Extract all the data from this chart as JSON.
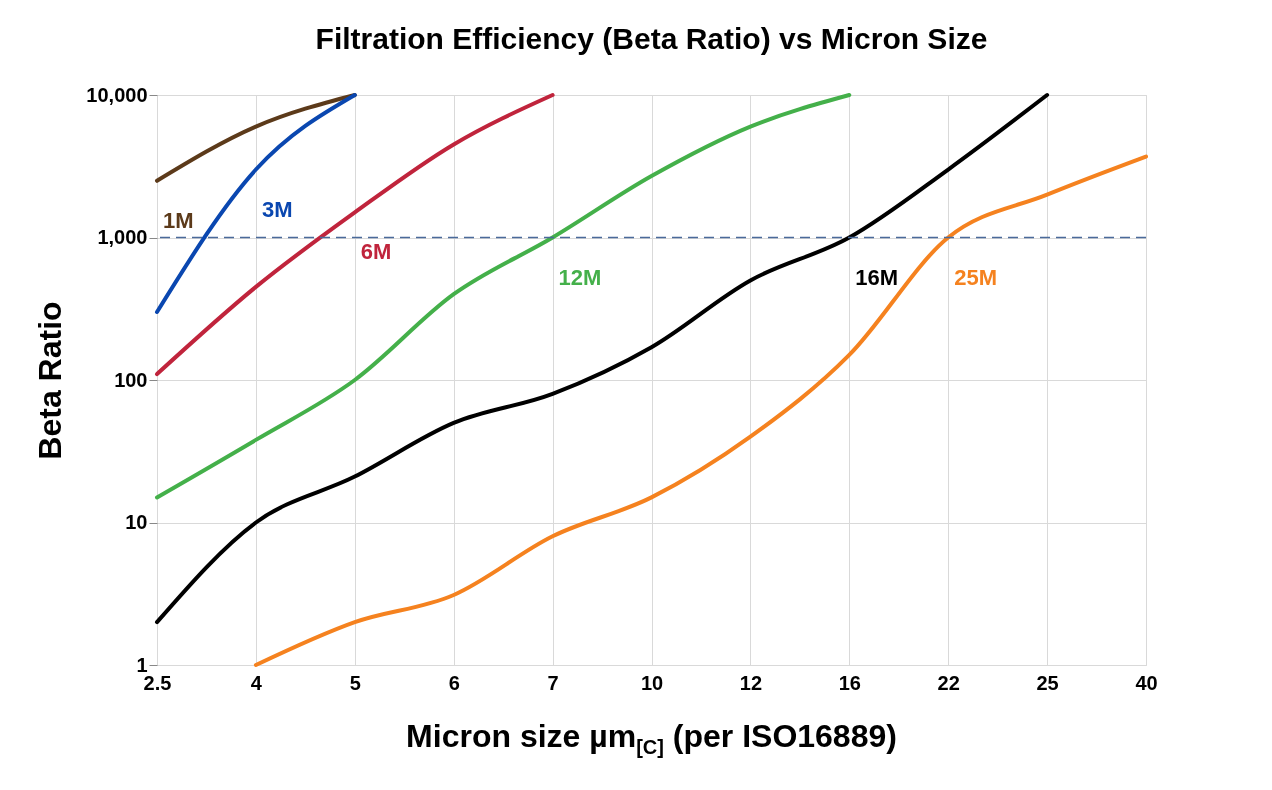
{
  "chart_data": {
    "type": "line",
    "title": "Filtration Efficiency (Beta Ratio) vs Micron Size",
    "xlabel": "Micron size µm$_{[C]}$ (per ISO16889)",
    "ylabel": "Beta Ratio",
    "categories": [
      "2.5",
      "4",
      "5",
      "6",
      "7",
      "10",
      "12",
      "16",
      "22",
      "25",
      "40"
    ],
    "log": true,
    "ylim": [
      1,
      10000
    ],
    "yticks": [
      1,
      10,
      100,
      {
        "value": 1000,
        "label": "1,000"
      },
      {
        "value": 10000,
        "label": "10,000"
      }
    ],
    "grid": true,
    "series": [
      {
        "name": "1M",
        "color": "#5c3a1a",
        "values": [
          2500,
          6000,
          10000,
          null,
          null,
          null,
          null,
          null,
          null,
          null,
          null
        ]
      },
      {
        "name": "3M",
        "color": "#0a47b0",
        "values": [
          300,
          3000,
          10000,
          null,
          null,
          null,
          null,
          null,
          null,
          null,
          null
        ]
      },
      {
        "name": "6M",
        "color": "#c0243c",
        "values": [
          110,
          450,
          1500,
          4500,
          10000,
          null,
          null,
          null,
          null,
          null,
          null
        ]
      },
      {
        "name": "12M",
        "color": "#44b04a",
        "values": [
          15,
          38,
          100,
          400,
          1000,
          2700,
          6000,
          10000,
          null,
          null,
          null
        ]
      },
      {
        "name": "16M",
        "color": "#000000",
        "values": [
          2,
          10,
          21,
          50,
          80,
          170,
          500,
          1000,
          3000,
          10000,
          null
        ]
      },
      {
        "name": "25M",
        "color": "#f5821f",
        "values": [
          null,
          1,
          2,
          3.1,
          8,
          15,
          40,
          150,
          1000,
          2000,
          3700
        ]
      }
    ],
    "ref_lines": [
      {
        "axis": "y",
        "value": 1000,
        "color": "#4a6a9a",
        "line_style": "dashed"
      }
    ]
  }
}
